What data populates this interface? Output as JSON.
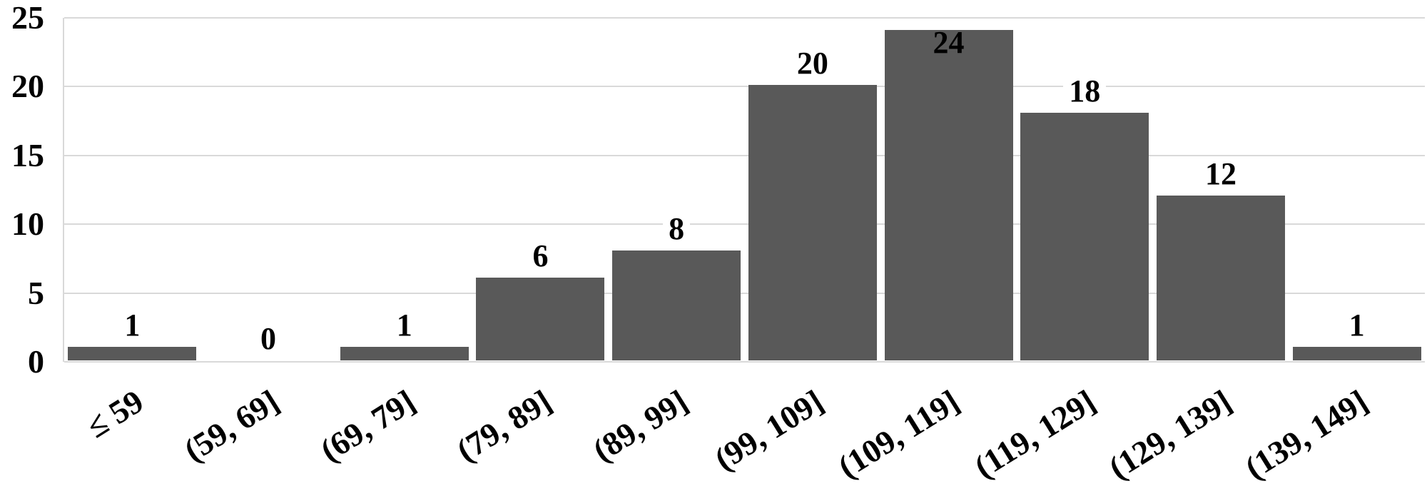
{
  "chart_data": {
    "type": "bar",
    "title": "",
    "xlabel": "",
    "ylabel": "",
    "categories": [
      "≤ 59",
      "(59, 69]",
      "(69, 79]",
      "(79, 89]",
      "(89, 99]",
      "(99, 109]",
      "(109, 119]",
      "(119, 129]",
      "(129, 139]",
      "(139, 149]"
    ],
    "values": [
      1,
      0,
      1,
      6,
      8,
      20,
      24,
      18,
      12,
      1
    ],
    "data_labels": [
      "1",
      "0",
      "1",
      "6",
      "8",
      "20",
      "24",
      "18",
      "12",
      "1"
    ],
    "y_ticks": [
      0,
      5,
      10,
      15,
      20,
      25
    ],
    "ylim": [
      0,
      25
    ],
    "grid": true,
    "legend": false,
    "colors": {
      "bar": "#595959",
      "gridline": "#d9d9d9",
      "text": "#000000",
      "background": "#ffffff"
    }
  }
}
